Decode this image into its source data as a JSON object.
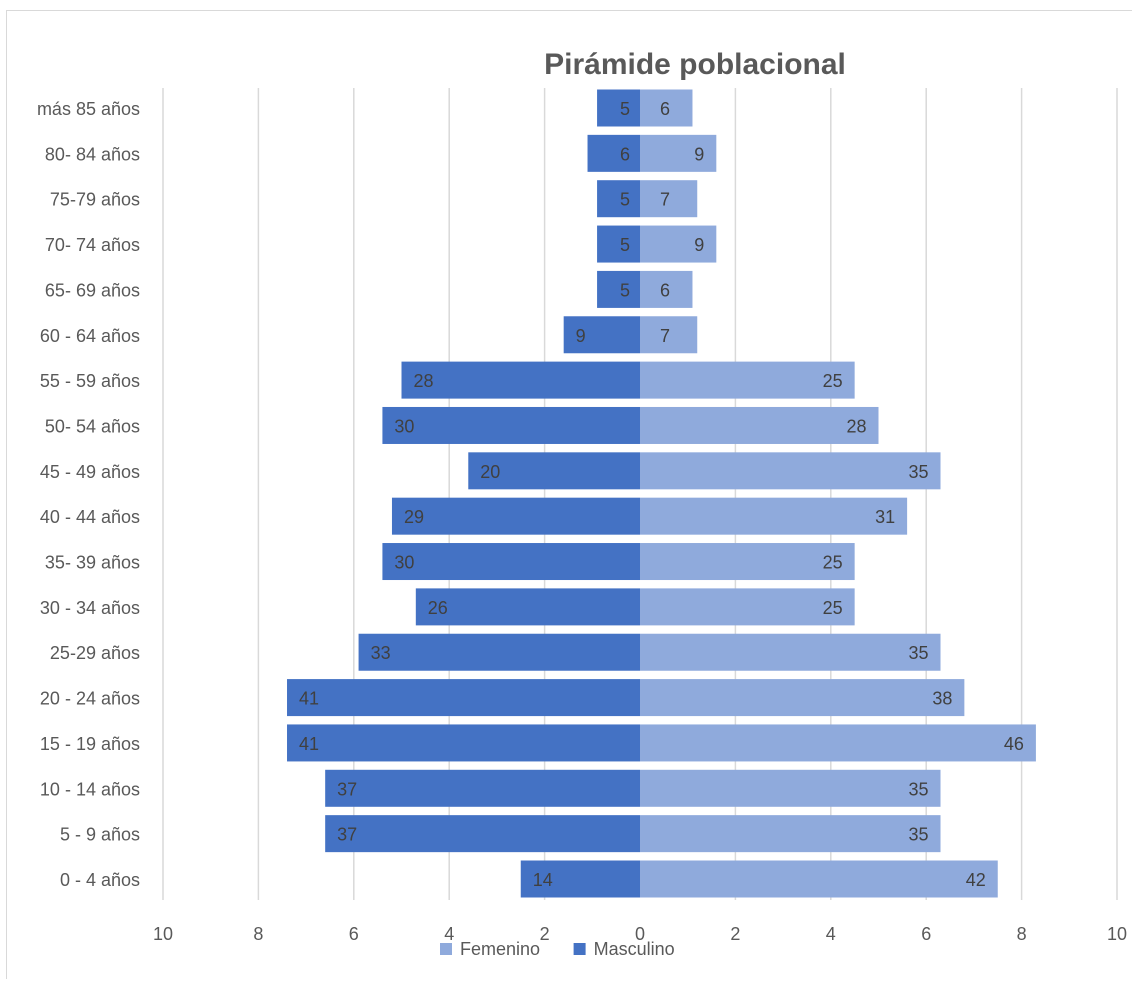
{
  "chart_data": {
    "type": "bar",
    "orientation": "horizontal",
    "layout": "population-pyramid",
    "title": "Pirámide poblacional",
    "categories": [
      "más  85 años",
      "80- 84 años",
      "75-79 años",
      "70- 74 años",
      "65- 69 años",
      "60 - 64 años",
      "55 - 59 años",
      "50- 54 años",
      "45 - 49 años",
      "40 - 44 años",
      "35- 39 años",
      "30 - 34 años",
      "25-29 años",
      "20 - 24 años",
      "15 - 19 años",
      "10 - 14 años",
      "5 - 9 años",
      "0 - 4 años"
    ],
    "series": [
      {
        "name": "Masculino",
        "side": "left",
        "color": "#4472c4",
        "labels": [
          5,
          6,
          5,
          5,
          5,
          9,
          28,
          30,
          20,
          29,
          30,
          26,
          33,
          41,
          41,
          37,
          37,
          14
        ],
        "values": [
          0.9,
          1.1,
          0.9,
          0.9,
          0.9,
          1.6,
          5.0,
          5.4,
          3.6,
          5.2,
          5.4,
          4.7,
          5.9,
          7.4,
          7.4,
          6.6,
          6.6,
          2.5
        ]
      },
      {
        "name": "Femenino",
        "side": "right",
        "color": "#8faadc",
        "labels": [
          6,
          9,
          7,
          9,
          6,
          7,
          25,
          28,
          35,
          31,
          25,
          25,
          35,
          38,
          46,
          35,
          35,
          42
        ],
        "values": [
          1.1,
          1.6,
          1.2,
          1.6,
          1.1,
          1.2,
          4.5,
          5.0,
          6.3,
          5.6,
          4.5,
          4.5,
          6.3,
          6.8,
          8.3,
          6.3,
          6.3,
          7.5
        ]
      }
    ],
    "xlim": [
      -10,
      10
    ],
    "xticks": [
      -10,
      -8,
      -6,
      -4,
      -2,
      0,
      2,
      4,
      6,
      8,
      10
    ],
    "xtick_labels": [
      "10",
      "8",
      "6",
      "4",
      "2",
      "0",
      "2",
      "4",
      "6",
      "8",
      "10"
    ],
    "grid": "vertical",
    "legend": {
      "position": "bottom",
      "entries": [
        "Femenino",
        "Masculino"
      ]
    }
  }
}
